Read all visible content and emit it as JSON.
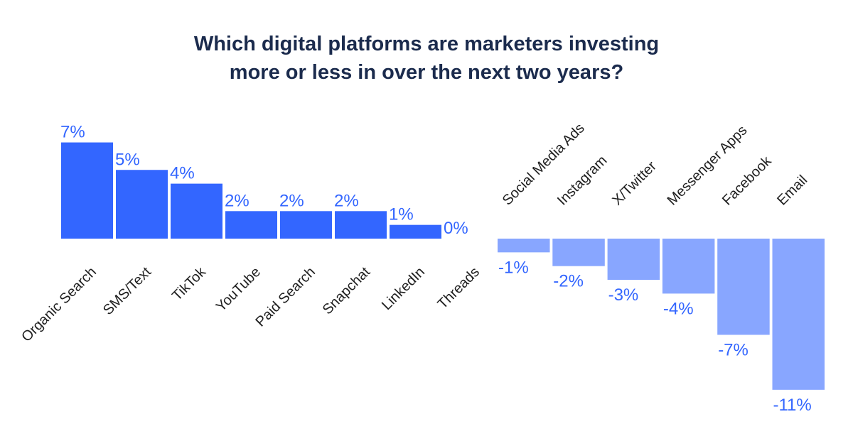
{
  "chart_title": {
    "line1": "Which digital platforms are marketers investing",
    "line2": "more or less in over the next two years?"
  },
  "colors": {
    "positive_bar": "#3366ff",
    "negative_bar": "#88a6ff",
    "positive_label": "#3366ff",
    "negative_label": "#3366ff",
    "title": "#1b2b4d"
  },
  "chart_data": {
    "type": "bar",
    "title": "Which digital platforms are marketers investing more or less in over the next two years?",
    "xlabel": "",
    "ylabel": "",
    "ylim": [
      -11,
      7
    ],
    "grid": false,
    "legend": "none",
    "value_suffix": "%",
    "categories": [
      "Organic Search",
      "SMS/Text",
      "TikTok",
      "YouTube",
      "Paid Search",
      "Snapchat",
      "LinkedIn",
      "Threads",
      "Social Media Ads",
      "Instagram",
      "X/Twitter",
      "Messenger Apps",
      "Facebook",
      "Email"
    ],
    "values": [
      7,
      5,
      4,
      2,
      2,
      2,
      1,
      0,
      -1,
      -2,
      -3,
      -4,
      -7,
      -11
    ],
    "value_labels": [
      "7%",
      "5%",
      "4%",
      "2%",
      "2%",
      "2%",
      "1%",
      "0%",
      "-1%",
      "-2%",
      "-3%",
      "-4%",
      "-7%",
      "-11%"
    ]
  }
}
